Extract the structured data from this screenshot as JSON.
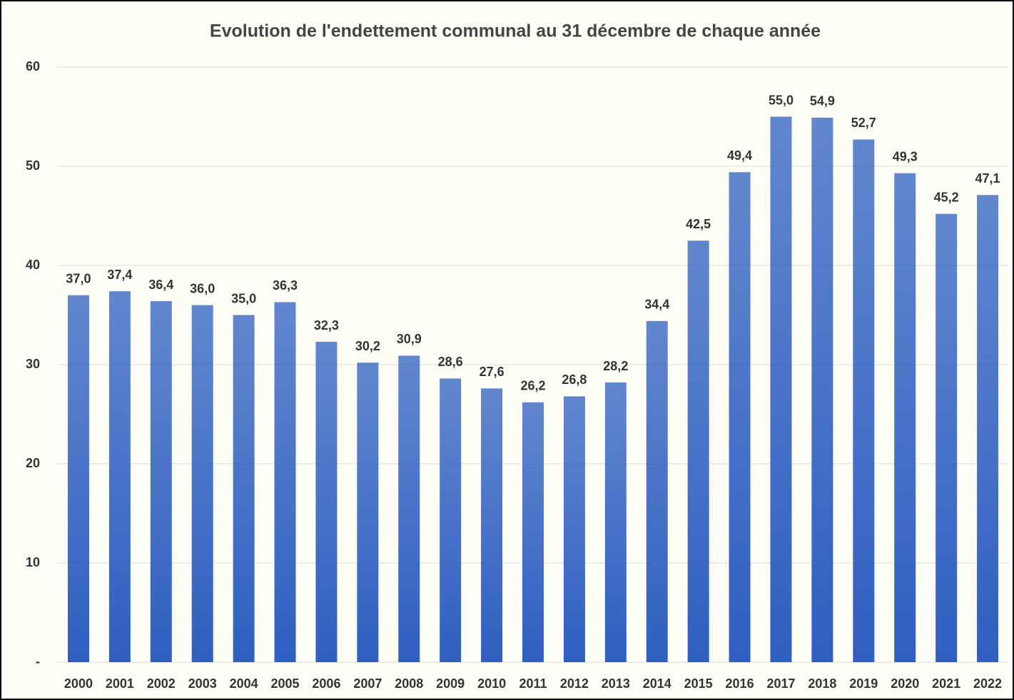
{
  "chart_data": {
    "type": "bar",
    "title": "Evolution de l'endettement communal au 31 décembre de chaque année",
    "categories": [
      "2000",
      "2001",
      "2002",
      "2003",
      "2004",
      "2005",
      "2006",
      "2007",
      "2008",
      "2009",
      "2010",
      "2011",
      "2012",
      "2013",
      "2014",
      "2015",
      "2016",
      "2017",
      "2018",
      "2019",
      "2020",
      "2021",
      "2022"
    ],
    "values": [
      37.0,
      37.4,
      36.4,
      36.0,
      35.0,
      36.3,
      32.3,
      30.2,
      30.9,
      28.6,
      27.6,
      26.2,
      26.8,
      28.2,
      34.4,
      42.5,
      49.4,
      55.0,
      54.9,
      52.7,
      49.3,
      45.2,
      47.1
    ],
    "value_labels": [
      "37,0",
      "37,4",
      "36,4",
      "36,0",
      "35,0",
      "36,3",
      "32,3",
      "30,2",
      "30,9",
      "28,6",
      "27,6",
      "26,2",
      "26,8",
      "28,2",
      "34,4",
      "42,5",
      "49,4",
      "55,0",
      "54,9",
      "52,7",
      "49,3",
      "45,2",
      "47,1"
    ],
    "color": "#2e5fc1",
    "ylim": [
      0,
      60
    ],
    "yticks": [
      {
        "value": 0,
        "label": "-"
      },
      10,
      20,
      30,
      40,
      50,
      60
    ],
    "grid": true
  }
}
